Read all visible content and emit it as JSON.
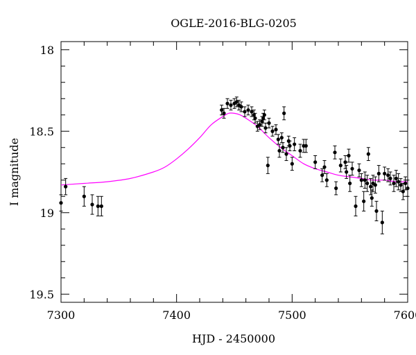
{
  "chart_data": {
    "type": "scatter",
    "title": "OGLE-2016-BLG-0205",
    "xlabel": "HJD - 2450000",
    "ylabel": "I magnitude",
    "xlim": [
      7300,
      7600
    ],
    "ylim": [
      17.95,
      19.55
    ],
    "y_inverted": true,
    "grid": false,
    "x_ticks": [
      7300,
      7400,
      7500,
      7600
    ],
    "x_tick_labels": [
      "7300",
      "7400",
      "7500",
      "7600"
    ],
    "y_ticks": [
      18,
      18.5,
      19,
      19.5
    ],
    "y_tick_labels": [
      "18",
      "18.5",
      "19",
      "19.5"
    ],
    "colors": {
      "points": "#000000",
      "model": "#ff00ff"
    },
    "series": [
      {
        "kind": "points",
        "x": [
          7300,
          7304,
          7320,
          7327,
          7332,
          7335,
          7439,
          7441,
          7444,
          7447,
          7450,
          7452,
          7454,
          7456,
          7459,
          7462,
          7465,
          7467,
          7468,
          7470,
          7472,
          7474,
          7475,
          7476,
          7477,
          7479,
          7480,
          7483,
          7486,
          7488,
          7489,
          7491,
          7492,
          7493,
          7495,
          7497,
          7498,
          7500,
          7502,
          7507,
          7510,
          7512,
          7520,
          7526,
          7528,
          7530,
          7537,
          7538,
          7542,
          7546,
          7547,
          7549,
          7550,
          7552,
          7555,
          7558,
          7560,
          7562,
          7563,
          7565,
          7566,
          7568,
          7569,
          7570,
          7572,
          7573,
          7575,
          7578,
          7580,
          7583,
          7585,
          7588,
          7590,
          7592,
          7594,
          7596,
          7598,
          7600
        ],
        "y": [
          18.94,
          18.84,
          18.9,
          18.95,
          18.96,
          18.96,
          18.37,
          18.39,
          18.33,
          18.34,
          18.33,
          18.32,
          18.34,
          18.35,
          18.38,
          18.37,
          18.38,
          18.4,
          18.42,
          18.47,
          18.46,
          18.44,
          18.42,
          18.4,
          18.48,
          18.71,
          18.45,
          18.5,
          18.49,
          18.55,
          18.62,
          18.54,
          18.6,
          18.39,
          18.64,
          18.56,
          18.59,
          18.7,
          18.58,
          18.62,
          18.59,
          18.59,
          18.69,
          18.77,
          18.72,
          18.8,
          18.63,
          18.85,
          18.71,
          18.69,
          18.75,
          18.65,
          18.82,
          18.73,
          18.96,
          18.74,
          18.8,
          18.93,
          18.8,
          18.82,
          18.64,
          18.84,
          18.91,
          18.82,
          18.83,
          18.99,
          18.76,
          19.06,
          18.76,
          18.77,
          18.79,
          18.82,
          18.79,
          18.81,
          18.83,
          18.87,
          18.82,
          18.85
        ],
        "yerr": [
          0.05,
          0.05,
          0.06,
          0.06,
          0.06,
          0.06,
          0.03,
          0.03,
          0.03,
          0.03,
          0.03,
          0.03,
          0.03,
          0.03,
          0.03,
          0.03,
          0.03,
          0.03,
          0.03,
          0.03,
          0.03,
          0.03,
          0.03,
          0.03,
          0.03,
          0.05,
          0.03,
          0.03,
          0.03,
          0.03,
          0.04,
          0.03,
          0.03,
          0.04,
          0.04,
          0.03,
          0.03,
          0.04,
          0.04,
          0.04,
          0.04,
          0.04,
          0.04,
          0.04,
          0.04,
          0.04,
          0.04,
          0.04,
          0.04,
          0.04,
          0.04,
          0.04,
          0.05,
          0.04,
          0.06,
          0.04,
          0.04,
          0.06,
          0.05,
          0.05,
          0.04,
          0.05,
          0.05,
          0.05,
          0.05,
          0.06,
          0.05,
          0.07,
          0.04,
          0.04,
          0.04,
          0.05,
          0.05,
          0.05,
          0.04,
          0.05,
          0.04,
          0.05
        ]
      },
      {
        "kind": "line",
        "x": [
          7300,
          7320,
          7340,
          7360,
          7380,
          7390,
          7400,
          7410,
          7420,
          7430,
          7440,
          7445,
          7450,
          7455,
          7460,
          7470,
          7480,
          7490,
          7500,
          7510,
          7520,
          7530,
          7540,
          7550,
          7560,
          7570,
          7580,
          7590,
          7600
        ],
        "y": [
          18.83,
          18.82,
          18.81,
          18.79,
          18.75,
          18.72,
          18.67,
          18.61,
          18.54,
          18.46,
          18.41,
          18.39,
          18.39,
          18.4,
          18.42,
          18.47,
          18.54,
          18.6,
          18.65,
          18.7,
          18.73,
          18.75,
          18.77,
          18.78,
          18.79,
          18.8,
          18.8,
          18.81,
          18.81
        ]
      }
    ]
  }
}
